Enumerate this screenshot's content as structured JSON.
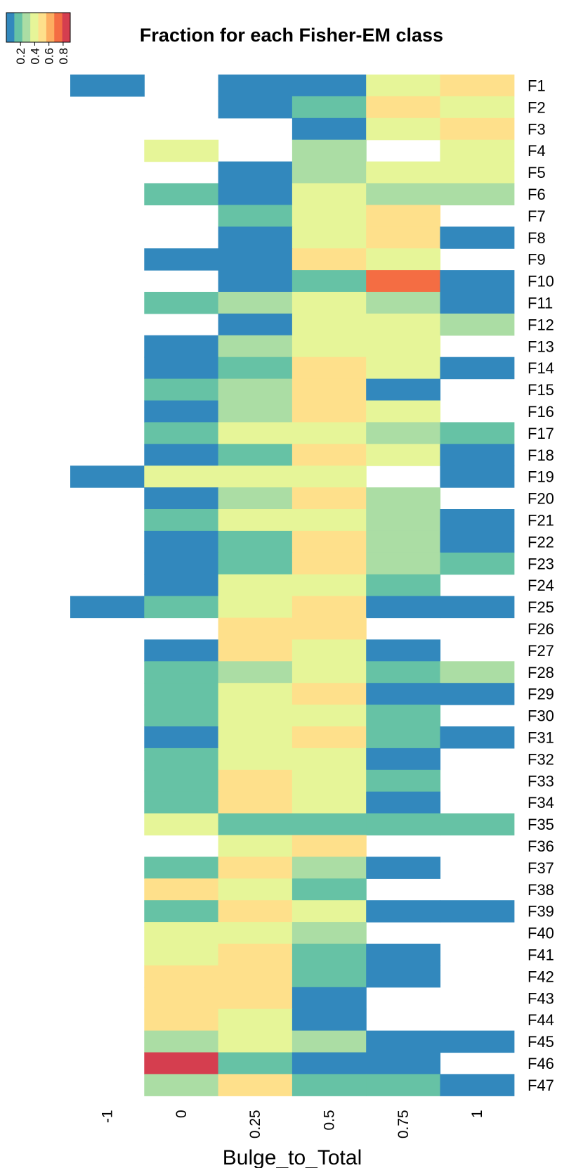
{
  "chart_data": {
    "type": "heatmap",
    "title": "Fraction for each Fisher-EM class",
    "xlabel": "Bulge_to_Total",
    "x_categories": [
      "-1",
      "0",
      "0.25",
      "0.5",
      "0.75",
      "1"
    ],
    "y_categories": [
      "F1",
      "F2",
      "F3",
      "F4",
      "F5",
      "F6",
      "F7",
      "F8",
      "F9",
      "F10",
      "F11",
      "F12",
      "F13",
      "F14",
      "F15",
      "F16",
      "F17",
      "F18",
      "F19",
      "F20",
      "F21",
      "F22",
      "F23",
      "F24",
      "F25",
      "F26",
      "F27",
      "F28",
      "F29",
      "F30",
      "F31",
      "F32",
      "F33",
      "F34",
      "F35",
      "F36",
      "F37",
      "F38",
      "F39",
      "F40",
      "F41",
      "F42",
      "F43",
      "F44",
      "F45",
      "F46",
      "F47"
    ],
    "color_scale": {
      "palette": "Spectral (reversed)",
      "colors": [
        "#3288bd",
        "#66c2a5",
        "#abdda4",
        "#e6f598",
        "#fee08b",
        "#fdae61",
        "#f46d43",
        "#d53e4f"
      ],
      "range": [
        0,
        0.9
      ],
      "key_ticks": [
        "0.2",
        "0.4",
        "0.6",
        "0.8"
      ],
      "missing": "white"
    },
    "values": [
      [
        0.05,
        null,
        0.05,
        0.05,
        0.35,
        0.55
      ],
      [
        null,
        null,
        0.05,
        0.15,
        0.45,
        0.4
      ],
      [
        null,
        null,
        null,
        0.05,
        0.4,
        0.5
      ],
      [
        null,
        0.4,
        null,
        0.25,
        null,
        0.4
      ],
      [
        null,
        null,
        0.05,
        0.25,
        0.4,
        0.35
      ],
      [
        null,
        0.15,
        0.05,
        0.35,
        0.25,
        0.25
      ],
      [
        null,
        null,
        0.15,
        0.4,
        0.45,
        null
      ],
      [
        null,
        null,
        0.05,
        0.35,
        0.45,
        0.05
      ],
      [
        null,
        0.05,
        0.05,
        0.5,
        0.35,
        null
      ],
      [
        null,
        null,
        0.05,
        0.15,
        0.7,
        0.05
      ],
      [
        null,
        0.15,
        0.25,
        0.35,
        0.25,
        0.05
      ],
      [
        null,
        null,
        0.05,
        0.35,
        0.4,
        0.25
      ],
      [
        null,
        0.05,
        0.25,
        0.4,
        0.35,
        null
      ],
      [
        null,
        0.05,
        0.15,
        0.45,
        0.35,
        0.05
      ],
      [
        null,
        0.15,
        0.25,
        0.45,
        0.05,
        null
      ],
      [
        null,
        0.05,
        0.25,
        0.45,
        0.35,
        null
      ],
      [
        null,
        0.15,
        0.35,
        0.4,
        0.25,
        0.15
      ],
      [
        null,
        0.05,
        0.15,
        0.45,
        0.4,
        0.05
      ],
      [
        0.05,
        0.35,
        0.35,
        0.35,
        null,
        0.05
      ],
      [
        null,
        0.05,
        0.25,
        0.45,
        0.25,
        null
      ],
      [
        null,
        0.15,
        0.35,
        0.35,
        0.25,
        0.05
      ],
      [
        null,
        0.05,
        0.15,
        0.45,
        0.25,
        0.05
      ],
      [
        null,
        0.05,
        0.15,
        0.45,
        0.25,
        0.15
      ],
      [
        null,
        0.05,
        0.4,
        0.4,
        0.15,
        null
      ],
      [
        0.05,
        0.15,
        0.35,
        0.45,
        0.05,
        0.05
      ],
      [
        null,
        null,
        0.45,
        0.45,
        null,
        null
      ],
      [
        null,
        0.05,
        0.45,
        0.4,
        0.05,
        null
      ],
      [
        null,
        0.15,
        0.25,
        0.35,
        0.15,
        0.25
      ],
      [
        null,
        0.15,
        0.4,
        0.45,
        0.05,
        0.05
      ],
      [
        null,
        0.15,
        0.4,
        0.4,
        0.15,
        null
      ],
      [
        null,
        0.05,
        0.35,
        0.45,
        0.15,
        0.05
      ],
      [
        null,
        0.15,
        0.4,
        0.4,
        0.05,
        null
      ],
      [
        null,
        0.15,
        0.45,
        0.35,
        0.15,
        null
      ],
      [
        null,
        0.15,
        0.45,
        0.4,
        0.05,
        null
      ],
      [
        null,
        0.35,
        0.15,
        0.15,
        0.15,
        0.15
      ],
      [
        null,
        null,
        0.35,
        0.55,
        null,
        null
      ],
      [
        null,
        0.15,
        0.55,
        0.25,
        0.05,
        null
      ],
      [
        null,
        0.5,
        0.35,
        0.15,
        null,
        null
      ],
      [
        null,
        0.15,
        0.5,
        0.35,
        0.05,
        0.05
      ],
      [
        null,
        0.35,
        0.4,
        0.25,
        null,
        null
      ],
      [
        null,
        0.4,
        0.45,
        0.15,
        0.05,
        null
      ],
      [
        null,
        0.45,
        0.45,
        0.15,
        0.05,
        null
      ],
      [
        null,
        0.45,
        0.45,
        0.05,
        null,
        null
      ],
      [
        null,
        0.55,
        0.35,
        0.05,
        null,
        null
      ],
      [
        null,
        0.25,
        0.4,
        0.25,
        0.05,
        0.05
      ],
      [
        null,
        0.85,
        0.15,
        0.05,
        0.05,
        null
      ],
      [
        null,
        0.25,
        0.45,
        0.15,
        0.15,
        0.05
      ]
    ]
  }
}
